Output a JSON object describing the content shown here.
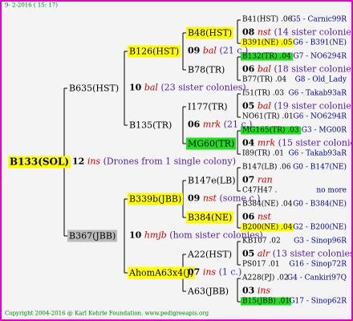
{
  "timestamp": "9- 2-2016 ( 15: 17)",
  "copyright": "Copyright 2004-2016 @ Karl Kehrle Foundation.   www.pedigreeapis.org",
  "tree": {
    "label": "B133(SOL)",
    "color": "#ffff00",
    "mating": {
      "num": "12",
      "code": "ins",
      "note": "(Drones from 1 single colony)"
    },
    "children": [
      {
        "label": "B635(HST)",
        "mating": {
          "num": "10",
          "code": "bal",
          "note": "(23 sister colonies)"
        },
        "children": [
          {
            "label": "B126(HST)",
            "color": "#ffff00",
            "mating": {
              "num": "09",
              "code": "bal",
              "note": "(21 c.)"
            },
            "children": [
              {
                "label": "B48(HST)",
                "color": "#ffff00",
                "mating": {
                  "num": "08",
                  "code": "nst",
                  "note": "(14 sister colonies)"
                },
                "children": [
                  {
                    "id": "B41(HST)",
                    "share": ".06",
                    "origin": "G5 - Carnic99R"
                  },
                  {
                    "id": "B391(NE)",
                    "share": ".05",
                    "color": "#ffff00",
                    "origin": "G6 - B391(NE)"
                  }
                ]
              },
              {
                "label": "B78(TR)",
                "mating": {
                  "num": "06",
                  "code": "bal",
                  "note": "(18 sister colonies)"
                },
                "children": [
                  {
                    "id": "B132(TR)",
                    "share": ".04",
                    "color": "#22dd22",
                    "origin": "G7 - NO6294R"
                  },
                  {
                    "id": "B77(TR)",
                    "share": ".04",
                    "origin": "G8 - Old_Lady"
                  }
                ]
              }
            ]
          },
          {
            "label": "B135(TR)",
            "mating": {
              "num": "06",
              "code": "mrk",
              "note": "(21 c.)"
            },
            "children": [
              {
                "label": "I177(TR)",
                "mating": {
                  "num": "05",
                  "code": "bal",
                  "note": "(19 sister colonies)"
                },
                "children": [
                  {
                    "id": "I51(TR)",
                    "share": ".03",
                    "origin": "G6 - Takab93aR"
                  },
                  {
                    "id": "NO61(TR)",
                    "share": ".01",
                    "origin": "G6 - NO6294R"
                  }
                ]
              },
              {
                "label": "MG60(TR)",
                "color": "#22dd22",
                "mating": {
                  "num": "04",
                  "code": "mrk",
                  "note": "(15 sister colonies)"
                },
                "children": [
                  {
                    "id": "MG165(TR)",
                    "share": ".03",
                    "color": "#22dd22",
                    "origin": "G3 - MG00R"
                  },
                  {
                    "id": "I89(TR)",
                    "share": ".01",
                    "origin": "G6 - Takab93aR"
                  }
                ]
              }
            ]
          }
        ]
      },
      {
        "label": "B367(JBB)",
        "color": "#bbbbbb",
        "mating": {
          "num": "10",
          "code": "hmjb",
          "note": "(hom sister colonies)"
        },
        "children": [
          {
            "label": "B339b(JBB)",
            "color": "#ffff00",
            "mating": {
              "num": "09",
              "code": "nst",
              "note": "(some c.)"
            },
            "children": [
              {
                "label": "B147e(LB)",
                "mating": {
                  "num": "07",
                  "code": "ran"
                },
                "children": [
                  {
                    "id": "B147(LB)",
                    "share": ".06",
                    "origin": "G0 - B147(NE)"
                  },
                  {
                    "id": "C47H47",
                    "share": ".",
                    "origin": "no more"
                  }
                ]
              },
              {
                "label": "B384(NE)",
                "color": "#ffff00",
                "mating": {
                  "num": "06",
                  "code": "nst"
                },
                "children": [
                  {
                    "id": "B384(NE)",
                    "share": ".04",
                    "origin": "G0 - B384(NE)"
                  },
                  {
                    "id": "B200(NE)",
                    "share": ".04",
                    "color": "#ffff00",
                    "origin": "G2 - B200(NE)"
                  }
                ]
              }
            ]
          },
          {
            "label": "AhomA63x4(J)",
            "color": "#ffff00",
            "mating": {
              "num": "07",
              "code": "ins",
              "note": "(1 c.)"
            },
            "children": [
              {
                "label": "A22(HST)",
                "mating": {
                  "num": "05",
                  "code": "alr",
                  "note": "(13 sister colonies)"
                },
                "children": [
                  {
                    "id": "KB107",
                    "share": ".02",
                    "origin": "G3 - Sinop96R"
                  },
                  {
                    "id": "PS017",
                    "share": ".01",
                    "origin": "G16 - Sinop72R"
                  }
                ]
              },
              {
                "label": "A63(JBB)",
                "mating": {
                  "num": "03",
                  "code": "ins"
                },
                "children": [
                  {
                    "id": "A228(PJ)",
                    "share": ".02",
                    "origin": "G4 - Cankiri97Q"
                  },
                  {
                    "id": "B15(JBB)",
                    "share": ".01",
                    "color": "#22dd22",
                    "origin": "G17 - Sinop62R"
                  }
                ]
              }
            ]
          }
        ]
      }
    ]
  }
}
